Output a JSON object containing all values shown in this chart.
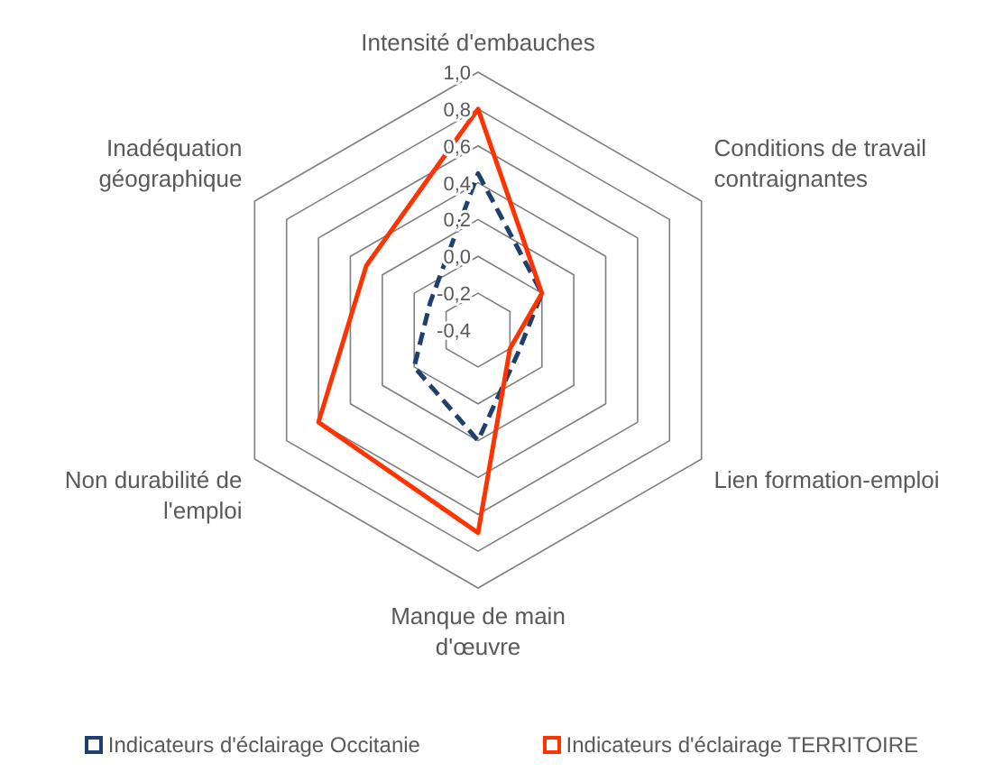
{
  "chart_data": {
    "type": "radar",
    "categories": [
      "Intensité d'embauches",
      "Conditions de travail contraignantes",
      "Lien formation-emploi",
      "Manque de main d'œuvre",
      "Non durabilité de l'emploi",
      "Inadéquation géographique"
    ],
    "series": [
      {
        "name": "Indicateurs d'éclairage Occitanie",
        "color": "#1f3f6e",
        "line_style": "dashed",
        "values": [
          0.45,
          0.0,
          -0.15,
          0.2,
          0.0,
          -0.1
        ]
      },
      {
        "name": "Indicateurs d'éclairage TERRITOIRE",
        "color": "#ff3300",
        "line_style": "solid",
        "values": [
          0.8,
          0.0,
          -0.2,
          0.7,
          0.6,
          0.3
        ]
      }
    ],
    "ylim": [
      -0.4,
      1.0
    ],
    "yticks": [
      {
        "value": -0.4,
        "label": "-0,4"
      },
      {
        "value": -0.2,
        "label": "-0,2"
      },
      {
        "value": 0,
        "label": "0,0"
      },
      {
        "value": 0.2,
        "label": "0,2"
      },
      {
        "value": 0.4,
        "label": "0,4"
      },
      {
        "value": 0.6,
        "label": "0,6"
      },
      {
        "value": 0.8,
        "label": "0,8"
      },
      {
        "value": 1.0,
        "label": "1,0"
      }
    ],
    "grid": true,
    "legend": "bottom",
    "marker": "none"
  }
}
